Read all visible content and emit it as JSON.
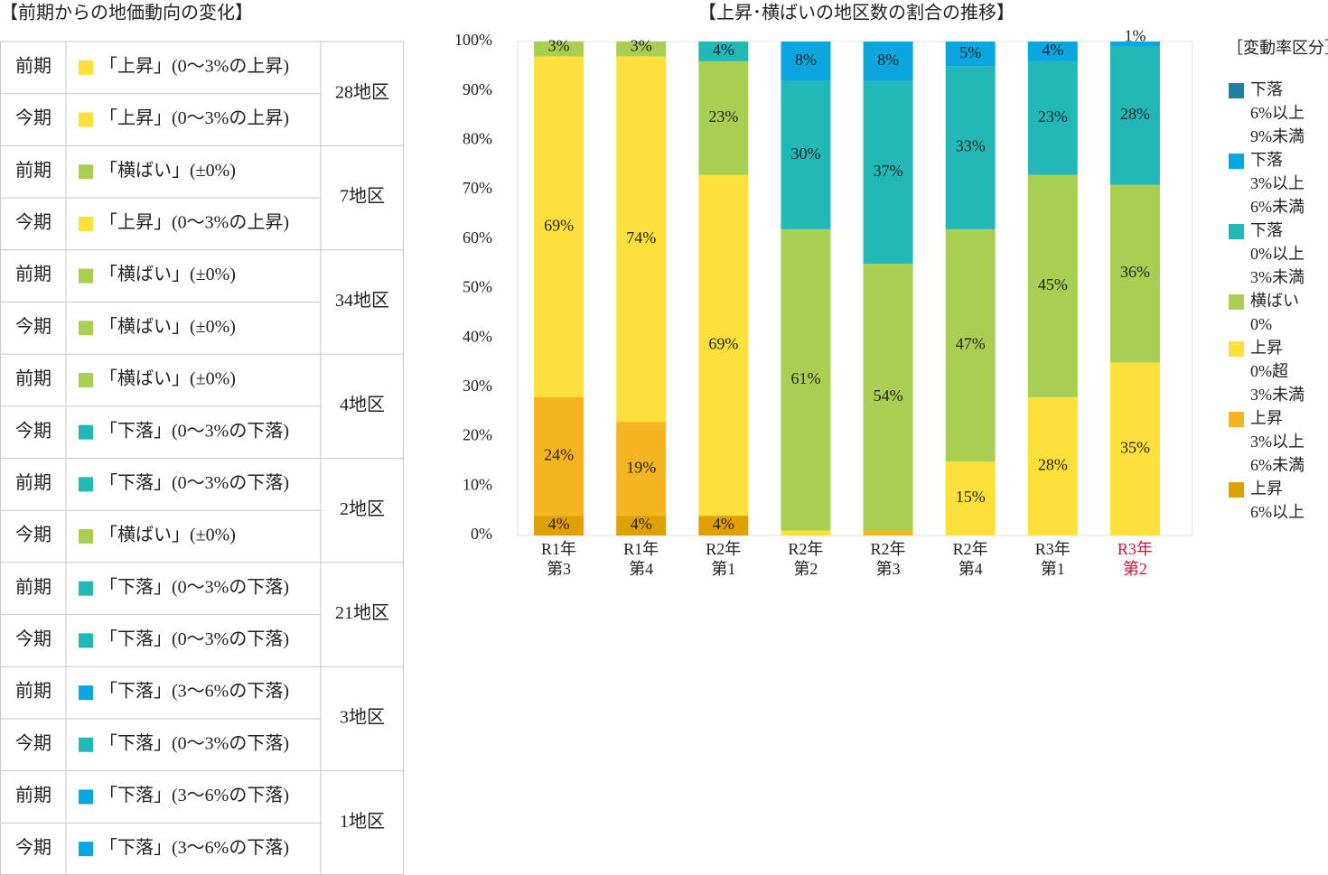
{
  "table": {
    "title": "【前期からの地価動向の変化】",
    "groups": [
      {
        "count": "28地区",
        "rows": [
          {
            "period": "前期",
            "color": "#fde13a",
            "label": "「上昇」(0～3%の上昇)"
          },
          {
            "period": "今期",
            "color": "#fde13a",
            "label": "「上昇」(0～3%の上昇)"
          }
        ]
      },
      {
        "count": "7地区",
        "rows": [
          {
            "period": "前期",
            "color": "#a8cf52",
            "label": "「横ばい」(±0%)"
          },
          {
            "period": "今期",
            "color": "#fde13a",
            "label": "「上昇」(0～3%の上昇)"
          }
        ]
      },
      {
        "count": "34地区",
        "rows": [
          {
            "period": "前期",
            "color": "#a8cf52",
            "label": "「横ばい」(±0%)"
          },
          {
            "period": "今期",
            "color": "#a8cf52",
            "label": "「横ばい」(±0%)"
          }
        ]
      },
      {
        "count": "4地区",
        "rows": [
          {
            "period": "前期",
            "color": "#a8cf52",
            "label": "「横ばい」(±0%)"
          },
          {
            "period": "今期",
            "color": "#22b8b8",
            "label": "「下落」(0～3%の下落)"
          }
        ]
      },
      {
        "count": "2地区",
        "rows": [
          {
            "period": "前期",
            "color": "#22b8b8",
            "label": "「下落」(0～3%の下落)"
          },
          {
            "period": "今期",
            "color": "#a8cf52",
            "label": "「横ばい」(±0%)"
          }
        ]
      },
      {
        "count": "21地区",
        "rows": [
          {
            "period": "前期",
            "color": "#22b8b8",
            "label": "「下落」(0～3%の下落)"
          },
          {
            "period": "今期",
            "color": "#22b8b8",
            "label": "「下落」(0～3%の下落)"
          }
        ]
      },
      {
        "count": "3地区",
        "rows": [
          {
            "period": "前期",
            "color": "#0aa6e0",
            "label": "「下落」(3～6%の下落)"
          },
          {
            "period": "今期",
            "color": "#22b8b8",
            "label": "「下落」(0～3%の下落)"
          }
        ]
      },
      {
        "count": "1地区",
        "rows": [
          {
            "period": "前期",
            "color": "#0aa6e0",
            "label": "「下落」(3～6%の下落)"
          },
          {
            "period": "今期",
            "color": "#0aa6e0",
            "label": "「下落」(3～6%の下落)"
          }
        ]
      }
    ]
  },
  "chart_data": {
    "type": "stacked_bar",
    "title": "【上昇･横ばいの地区数の割合の推移】",
    "categories": [
      [
        "R1年",
        "第3"
      ],
      [
        "R1年",
        "第4"
      ],
      [
        "R2年",
        "第1"
      ],
      [
        "R2年",
        "第2"
      ],
      [
        "R2年",
        "第3"
      ],
      [
        "R2年",
        "第4"
      ],
      [
        "R3年",
        "第1"
      ],
      [
        "R3年",
        "第2"
      ]
    ],
    "highlight": {
      "category": 7,
      "color": "#c8143c"
    },
    "legend_title": "［変動率区分］",
    "ylim": [
      0,
      100
    ],
    "yticks": [
      {
        "value": 0,
        "label": "0%"
      },
      {
        "value": 10,
        "label": "10%"
      },
      {
        "value": 20,
        "label": "20%"
      },
      {
        "value": 30,
        "label": "30%"
      },
      {
        "value": 40,
        "label": "40%"
      },
      {
        "value": 50,
        "label": "50%"
      },
      {
        "value": 60,
        "label": "60%"
      },
      {
        "value": 70,
        "label": "70%"
      },
      {
        "value": 80,
        "label": "80%"
      },
      {
        "value": 90,
        "label": "90%"
      },
      {
        "value": 100,
        "label": "100%"
      }
    ],
    "series": [
      {
        "name": [
          "下落",
          "6%以上",
          "9%未満"
        ],
        "color": "#1f7fa0",
        "values": [
          null,
          null,
          null,
          null,
          null,
          null,
          null,
          null
        ],
        "value_labels": [
          null,
          null,
          null,
          null,
          null,
          null,
          null,
          null
        ]
      },
      {
        "name": [
          "下落",
          "3%以上",
          "6%未満"
        ],
        "color": "#0aa6e0",
        "values": [
          null,
          null,
          null,
          8,
          8,
          5,
          4,
          1
        ],
        "value_labels": [
          null,
          null,
          null,
          "8%",
          "8%",
          "5%",
          "4%",
          "1%"
        ]
      },
      {
        "name": [
          "下落",
          "0%以上",
          "3%未満"
        ],
        "color": "#22b8b8",
        "values": [
          null,
          null,
          4,
          30,
          37,
          33,
          23,
          28
        ],
        "value_labels": [
          null,
          null,
          "4%",
          "30%",
          "37%",
          "33%",
          "23%",
          "28%"
        ]
      },
      {
        "name": [
          "横ばい",
          "0%"
        ],
        "color": "#a8cf52",
        "values": [
          3,
          3,
          23,
          61,
          54,
          47,
          45,
          36
        ],
        "value_labels": [
          "3%",
          "3%",
          "23%",
          "61%",
          "54%",
          "47%",
          "45%",
          "36%"
        ]
      },
      {
        "name": [
          "上昇",
          "0%超",
          "3%未満"
        ],
        "color": "#fde13a",
        "values": [
          69,
          74,
          69,
          1,
          null,
          15,
          28,
          35
        ],
        "value_labels": [
          "69%",
          "74%",
          "69%",
          "1%",
          null,
          "15%",
          "28%",
          "35%"
        ]
      },
      {
        "name": [
          "上昇",
          "3%以上",
          "6%未満"
        ],
        "color": "#f5b520",
        "values": [
          24,
          19,
          null,
          null,
          1,
          null,
          null,
          null
        ],
        "value_labels": [
          "24%",
          "19%",
          null,
          null,
          "1%",
          null,
          null,
          null
        ]
      },
      {
        "name": [
          "上昇",
          "6%以上"
        ],
        "color": "#e0a000",
        "values": [
          4,
          4,
          4,
          null,
          null,
          null,
          null,
          null
        ],
        "value_labels": [
          "4%",
          "4%",
          "4%",
          null,
          null,
          null,
          null,
          null
        ]
      }
    ]
  }
}
